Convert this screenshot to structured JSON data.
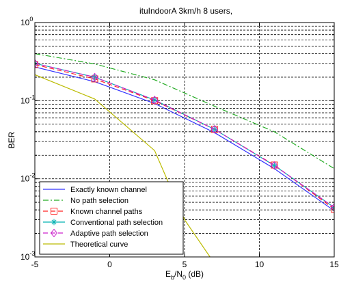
{
  "chart_data": {
    "type": "line",
    "title": "ituIndoorA 3km/h 8 users,",
    "xlabel": "E_b/N_0 (dB)",
    "xlabel_parts": {
      "base": "E",
      "sub1": "b",
      "slash": "/N",
      "sub2": "0",
      "unit": " (dB)"
    },
    "ylabel": "BER",
    "xlim": [
      -5,
      15
    ],
    "ylim": [
      0.001,
      1
    ],
    "yscale": "log",
    "grid": true,
    "x_ticks": [
      -5,
      0,
      5,
      10,
      15
    ],
    "y_ticks": [
      {
        "value": 1,
        "base": "10",
        "exp": "0"
      },
      {
        "value": 0.1,
        "base": "10",
        "exp": "-1"
      },
      {
        "value": 0.01,
        "base": "10",
        "exp": "-2"
      },
      {
        "value": 0.001,
        "base": "10",
        "exp": "-3"
      }
    ],
    "legend_position": "bottom-left",
    "series": [
      {
        "name": "Exactly known channel",
        "color": "#3333ff",
        "dash": "solid",
        "marker": "none",
        "x": [
          -5,
          -1,
          3,
          7,
          11,
          15
        ],
        "y": [
          0.27,
          0.175,
          0.092,
          0.039,
          0.0135,
          0.0039
        ]
      },
      {
        "name": "No path selection",
        "color": "#22aa22",
        "dash": "dashdot",
        "marker": "none",
        "x": [
          -5,
          -1,
          3,
          7,
          11,
          15
        ],
        "y": [
          0.4,
          0.295,
          0.185,
          0.085,
          0.04,
          0.0135
        ]
      },
      {
        "name": "Known channel paths",
        "color": "#ff2222",
        "dash": "dashed",
        "marker": "square",
        "x": [
          -5,
          -1,
          3,
          7,
          11,
          15
        ],
        "y": [
          0.29,
          0.19,
          0.1,
          0.043,
          0.015,
          0.0041
        ]
      },
      {
        "name": "Conventional path selection",
        "color": "#00b0b0",
        "dash": "solid",
        "marker": "star",
        "x": [
          -5,
          -1,
          3,
          7,
          11,
          15
        ],
        "y": [
          0.3,
          0.2,
          0.102,
          0.043,
          0.0148,
          0.0043
        ]
      },
      {
        "name": "Adaptive path selection",
        "color": "#cc22cc",
        "dash": "dashed",
        "marker": "diamond",
        "x": [
          -5,
          -1,
          3,
          7,
          11,
          15
        ],
        "y": [
          0.3,
          0.2,
          0.102,
          0.043,
          0.0148,
          0.0043
        ]
      },
      {
        "name": "Theoretical curve",
        "color": "#bbbb00",
        "dash": "solid",
        "marker": "none",
        "x": [
          -5,
          -1,
          3,
          5,
          6.7
        ],
        "y": [
          0.215,
          0.105,
          0.023,
          0.003,
          0.001
        ]
      }
    ]
  }
}
